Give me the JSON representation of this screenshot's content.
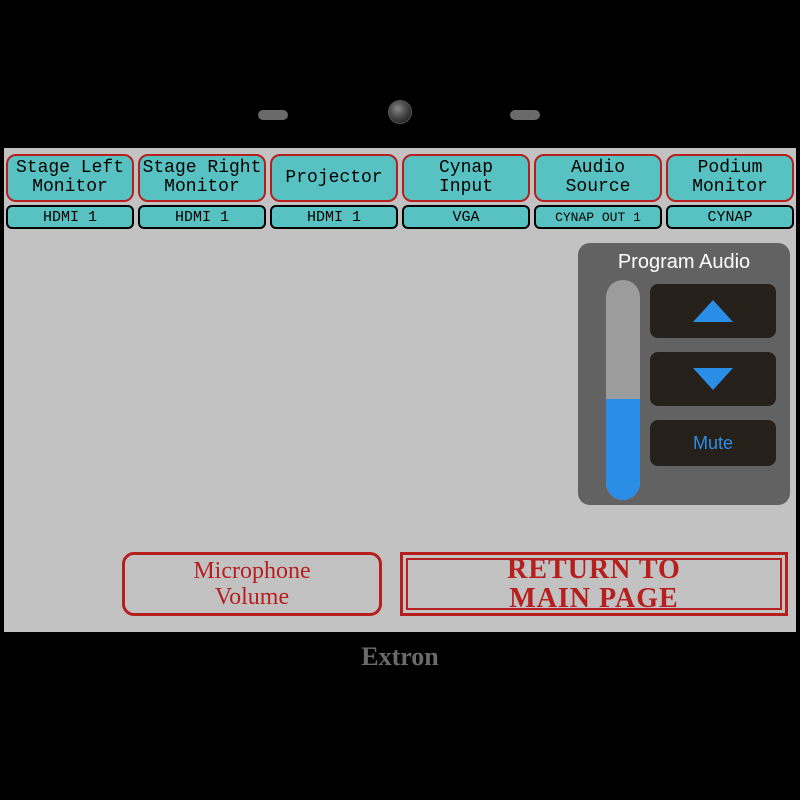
{
  "colors": {
    "page_bg": "#000000",
    "screen_bg": "#c2c2c2",
    "teal": "#58c2c2",
    "red": "#b71f1f",
    "panel_bg": "#626262",
    "track_bg": "#9c9c9c",
    "accent_blue": "#2b8ee6",
    "dark_btn": "#26201b",
    "brand_gray": "#6a6a6a"
  },
  "sources": [
    {
      "label": "Stage Left\nMonitor",
      "status": "HDMI 1"
    },
    {
      "label": "Stage Right\nMonitor",
      "status": "HDMI 1"
    },
    {
      "label": "Projector",
      "status": "HDMI 1"
    },
    {
      "label": "Cynap\nInput",
      "status": "VGA"
    },
    {
      "label": "Audio\nSource",
      "status": "CYNAP OUT 1"
    },
    {
      "label": "Podium\nMonitor",
      "status": "CYNAP"
    }
  ],
  "audio": {
    "title": "Program Audio",
    "level_percent": 46,
    "mute_label": "Mute"
  },
  "mic_button": "Microphone\nVolume",
  "return_button": "RETURN TO\nMAIN PAGE",
  "brand": "Extron"
}
